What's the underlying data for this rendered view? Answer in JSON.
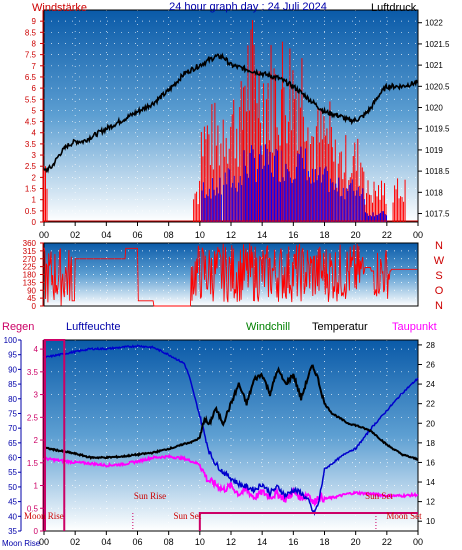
{
  "chart_data": [
    {
      "id": "wind-pressure",
      "type": "line",
      "title": "24 hour graph day : 24 Juli 2024",
      "left_axis_label": "Windstärke",
      "right_axis_label": "Luftdruck",
      "left_ylim": [
        0,
        9.5
      ],
      "left_ticks": [
        0,
        0.5,
        1,
        1.5,
        2,
        2.5,
        3,
        3.5,
        4,
        4.5,
        5,
        5.5,
        6,
        6.5,
        7,
        7.5,
        8,
        8.5,
        9
      ],
      "right_ylim": [
        1017.3,
        1022.3
      ],
      "right_ticks": [
        1017.5,
        1018,
        1018.5,
        1019,
        1019.5,
        1020,
        1020.5,
        1021,
        1021.5,
        1022
      ],
      "x_ticks": [
        "00",
        "02",
        "04",
        "06",
        "08",
        "10",
        "12",
        "14",
        "16",
        "18",
        "20",
        "22",
        "00"
      ],
      "grid": true,
      "legend": "none",
      "colors": {
        "wind_gust": "#ff0000",
        "wind_avg": "#0000ff",
        "pressure": "#000000"
      },
      "series": [
        {
          "key": "pressure",
          "axis": "right",
          "x": [
            0,
            0.5,
            1,
            1.5,
            2,
            2.5,
            3,
            4,
            5,
            6,
            7,
            8,
            9,
            10,
            11,
            11.5,
            12,
            13,
            14,
            15,
            16,
            17,
            18,
            19,
            19.5,
            20,
            20.5,
            21,
            21.5,
            22,
            23,
            24
          ],
          "values": [
            1018.5,
            1018.6,
            1018.9,
            1019.1,
            1019.2,
            1019.2,
            1019.3,
            1019.5,
            1019.7,
            1019.9,
            1020.1,
            1020.4,
            1020.8,
            1021.0,
            1021.2,
            1021.2,
            1021.0,
            1020.9,
            1020.8,
            1020.7,
            1020.5,
            1020.2,
            1019.9,
            1019.8,
            1019.7,
            1019.7,
            1019.8,
            1020.0,
            1020.3,
            1020.5,
            1020.5,
            1020.6
          ]
        }
      ],
      "wind_ranges": [
        {
          "x_from": 0,
          "x_to": 0.2,
          "gust_max": 3.5
        },
        {
          "x_from": 9.6,
          "x_to": 10,
          "gust_max": 2
        },
        {
          "x_from": 10.1,
          "x_to": 11.4,
          "gust_max": 5.5,
          "avg_max": 2
        },
        {
          "x_from": 11.5,
          "x_to": 12.8,
          "gust_max": 6.5,
          "avg_max": 2.5
        },
        {
          "x_from": 12.8,
          "x_to": 13.8,
          "gust_max": 9.5,
          "avg_max": 3.5
        },
        {
          "x_from": 13.8,
          "x_to": 15.3,
          "gust_max": 8.5,
          "avg_max": 3.5
        },
        {
          "x_from": 15.3,
          "x_to": 17,
          "gust_max": 9,
          "avg_max": 3.5
        },
        {
          "x_from": 17,
          "x_to": 18.5,
          "gust_max": 5.5,
          "avg_max": 2.5
        },
        {
          "x_from": 18.5,
          "x_to": 20.6,
          "gust_max": 4,
          "avg_max": 2
        },
        {
          "x_from": 20.6,
          "x_to": 22,
          "gust_max": 2,
          "avg_max": 0.5
        },
        {
          "x_from": 22.4,
          "x_to": 23.2,
          "gust_max": 2
        }
      ]
    },
    {
      "id": "wind-direction",
      "type": "line",
      "ylim": [
        0,
        360
      ],
      "y_ticks": [
        0,
        45,
        90,
        135,
        180,
        225,
        270,
        315,
        360
      ],
      "direction_labels": [
        "N",
        "W",
        "S",
        "O",
        "N"
      ],
      "colors": {
        "direction": "#ff0000"
      },
      "series": [
        {
          "key": "direction",
          "x": [
            0,
            0.2,
            0.4,
            0.6,
            0.8,
            1.0,
            1.2,
            1.4,
            1.6,
            2.0,
            3.0,
            4.0,
            5.0,
            5.2,
            5.3,
            5.5,
            6.0,
            7.0,
            8.0,
            8.5,
            9.0,
            9.2,
            9.6,
            10.0,
            11.0,
            12.0,
            13.0,
            14.0,
            15.0,
            16.0,
            17.0,
            18.0,
            19.0,
            20.0,
            20.5,
            21.0,
            21.5,
            22.0,
            22.3,
            23.0,
            24.0
          ],
          "values": [
            315,
            30,
            120,
            250,
            200,
            60,
            280,
            150,
            30,
            270,
            270,
            270,
            270,
            330,
            330,
            330,
            30,
            0,
            0,
            0,
            0,
            0,
            30,
            200,
            180,
            220,
            180,
            200,
            180,
            220,
            180,
            200,
            190,
            200,
            220,
            200,
            210,
            200,
            210,
            210,
            180
          ]
        }
      ],
      "noisy_ranges": [
        {
          "x_from": 0,
          "x_to": 1.8,
          "min": 0,
          "max": 340
        },
        {
          "x_from": 9.4,
          "x_to": 20.6,
          "min": 20,
          "max": 360
        },
        {
          "x_from": 21.2,
          "x_to": 22.2,
          "min": 40,
          "max": 340
        }
      ]
    },
    {
      "id": "humidity-temperature",
      "type": "line",
      "left_axis_label": "Regen",
      "left_axis2_label": "Luftfeuchte",
      "legend_labels": [
        "Windchill",
        "Temperatur",
        "Taupunkt"
      ],
      "rain_ylim": [
        0,
        4.2
      ],
      "rain_ticks": [
        0,
        0.5,
        1,
        1.5,
        2,
        2.5,
        3,
        3.5,
        4
      ],
      "humidity_ylim": [
        35,
        100
      ],
      "humidity_ticks": [
        35,
        40,
        45,
        50,
        55,
        60,
        65,
        70,
        75,
        80,
        85,
        90,
        95,
        100
      ],
      "temp_ylim": [
        9,
        28.5
      ],
      "temp_ticks": [
        10,
        12,
        14,
        16,
        18,
        20,
        22,
        24,
        26,
        28
      ],
      "x_ticks": [
        "00",
        "02",
        "04",
        "06",
        "08",
        "10",
        "12",
        "14",
        "16",
        "18",
        "20",
        "22",
        "00"
      ],
      "grid": true,
      "colors": {
        "windchill": "#008000",
        "temperature": "#000000",
        "dewpoint": "#ff00ff",
        "humidity": "#0000cc",
        "rain_bar": "#cc0066",
        "sun_line": "#cc0066"
      },
      "series": [
        {
          "key": "temperature",
          "axis": "temp",
          "x": [
            0,
            1,
            2,
            3,
            4,
            5,
            6,
            7,
            8,
            8.5,
            9,
            9.5,
            10,
            10.3,
            10.6,
            11,
            11.5,
            12,
            12.5,
            13,
            13.5,
            14,
            14.5,
            15,
            15.5,
            16,
            16.5,
            17,
            17.2,
            17.5,
            18,
            18.5,
            19,
            19.5,
            20,
            21,
            22,
            23,
            24
          ],
          "values": [
            17.5,
            17.2,
            16.9,
            16.5,
            16.5,
            16.6,
            16.8,
            17,
            17.4,
            17.6,
            17.9,
            18.1,
            18.5,
            20.5,
            19.8,
            21.5,
            20,
            22,
            24,
            22,
            24.5,
            25,
            23,
            25.5,
            24,
            25,
            22.5,
            25,
            25.8,
            25,
            22,
            21,
            20.5,
            20,
            19.8,
            19.2,
            17.8,
            16.8,
            16.3
          ]
        },
        {
          "key": "dewpoint",
          "axis": "temp",
          "x": [
            0,
            1,
            2,
            3,
            4,
            5,
            6,
            7,
            8,
            9,
            9.5,
            10,
            10.5,
            11,
            11.5,
            12,
            12.5,
            13,
            13.5,
            14,
            14.5,
            15,
            15.5,
            16,
            16.5,
            17,
            17.3,
            17.6,
            18,
            18.5,
            19,
            19.5,
            20,
            21,
            22,
            23,
            24
          ],
          "values": [
            16.4,
            16.2,
            16.0,
            15.9,
            15.7,
            15.8,
            16.1,
            16.5,
            16.6,
            16.4,
            16.1,
            15.8,
            14.2,
            13.8,
            13.2,
            13.6,
            12.8,
            13.2,
            12.4,
            13.0,
            12.5,
            12.8,
            12.2,
            13.0,
            12.4,
            12.8,
            11.8,
            12.5,
            12.3,
            12.4,
            12.6,
            12.8,
            12.9,
            12.8,
            12.6,
            12.6,
            12.7
          ]
        },
        {
          "key": "humidity",
          "axis": "humidity",
          "x": [
            0,
            1,
            2,
            3,
            4,
            5,
            6,
            7,
            8,
            9,
            9.3,
            9.6,
            10,
            10.3,
            10.6,
            11,
            11.5,
            12,
            12.5,
            13,
            13.5,
            14,
            14.5,
            15,
            15.5,
            16,
            16.5,
            17,
            17.3,
            17.6,
            18,
            18.5,
            19,
            19.5,
            20,
            21,
            22,
            23,
            24
          ],
          "values": [
            94,
            95,
            96,
            97,
            97,
            97.5,
            98,
            97.5,
            95,
            92,
            88,
            82,
            74,
            68,
            62,
            58,
            55,
            53,
            51,
            50,
            49,
            51,
            48,
            50,
            47,
            49,
            48,
            45,
            41,
            44,
            56,
            58,
            60,
            62,
            63,
            70,
            76,
            82,
            87
          ]
        },
        {
          "key": "rain_window",
          "axis": "rain",
          "x": [
            0,
            1.3
          ],
          "values": [
            4.2,
            4.2
          ]
        }
      ],
      "sun": {
        "sun_rise_label": "Sun Rise",
        "sun_set_label": "Sun Set",
        "moon_rise_label": "Moon Rise",
        "moon_set_label": "Moon Set",
        "moon_bottom_label": "Moon Rise",
        "sunrise_hour": 5.7,
        "sunset_hour": 21.3,
        "moon_rise_hour": 1.2,
        "moon_set_hour": 10.0,
        "moon_rise2_hour": 23.0
      }
    }
  ]
}
